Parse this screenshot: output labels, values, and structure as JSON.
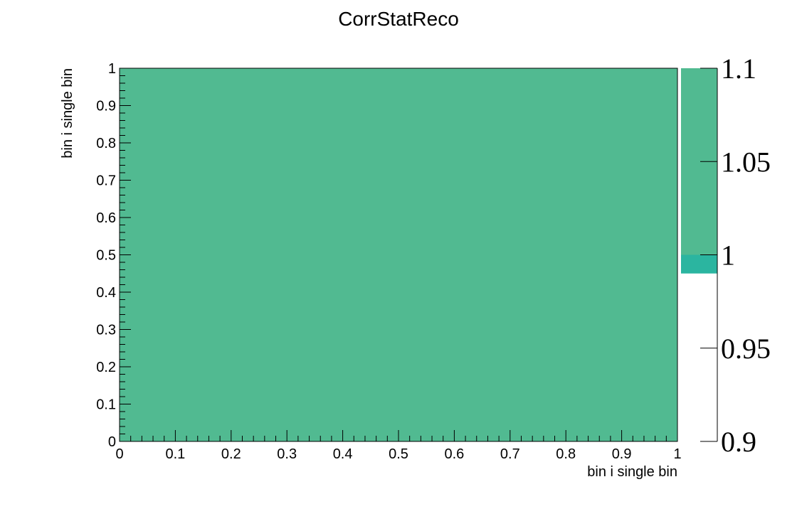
{
  "chart_data": {
    "type": "heatmap",
    "title": "CorrStatReco",
    "xlabel": "bin i single bin",
    "ylabel": "bin i single bin",
    "xlim": [
      0,
      1
    ],
    "ylim": [
      0,
      1
    ],
    "x_ticks": [
      "0",
      "0.1",
      "0.2",
      "0.3",
      "0.4",
      "0.5",
      "0.6",
      "0.7",
      "0.8",
      "0.9",
      "1"
    ],
    "y_ticks": [
      "0",
      "0.1",
      "0.2",
      "0.3",
      "0.4",
      "0.5",
      "0.6",
      "0.7",
      "0.8",
      "0.9",
      "1"
    ],
    "cells": [
      {
        "x": [
          0,
          1
        ],
        "y": [
          0,
          1
        ],
        "value": 1
      }
    ],
    "colorbar": {
      "zlim": [
        0.9,
        1.1
      ],
      "ticks": [
        "0.9",
        "0.95",
        "1",
        "1.05",
        "1.1"
      ],
      "bands": [
        {
          "from": 0.99,
          "to": 1.0,
          "color": "#2bb5a0"
        },
        {
          "from": 1.0,
          "to": 1.1,
          "color": "#51ba91"
        }
      ]
    },
    "cell_color": "#51ba91",
    "grid": false,
    "legend": "none"
  }
}
